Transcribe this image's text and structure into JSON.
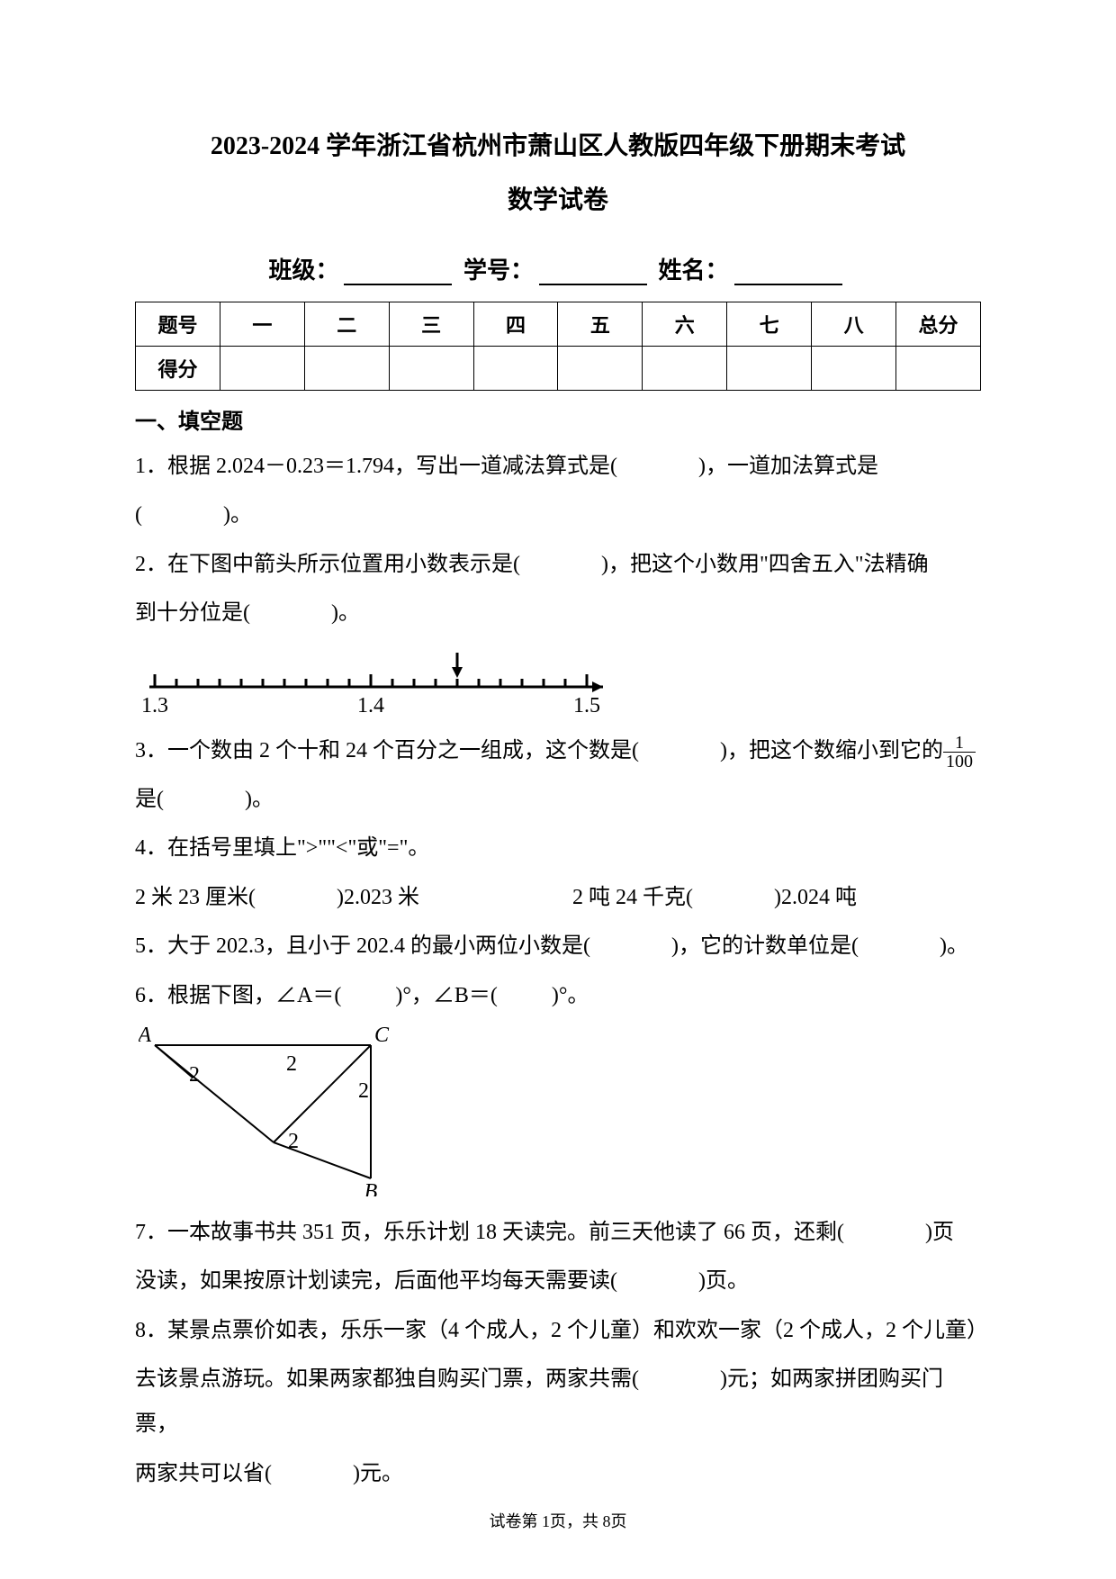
{
  "header": {
    "title": "2023-2024 学年浙江省杭州市萧山区人教版四年级下册期末考试",
    "subtitle": "数学试卷",
    "class_label": "班级：",
    "student_no_label": "学号：",
    "name_label": "姓名："
  },
  "score_table": {
    "headers": [
      "题号",
      "一",
      "二",
      "三",
      "四",
      "五",
      "六",
      "七",
      "八",
      "总分"
    ],
    "row_label": "得分"
  },
  "section1_title": "一、填空题",
  "questions": {
    "q1": {
      "text_a": "1．根据 2.024－0.23＝1.794，写出一道减法算式是(",
      "text_b": ")，一道加法算式是",
      "text_c": "(",
      "text_d": ")。"
    },
    "q2": {
      "text_a": "2．在下图中箭头所示位置用小数表示是(",
      "text_b": ")，把这个小数用\"四舍五入\"法精确",
      "text_c": "到十分位是(",
      "text_d": ")。"
    },
    "number_line": {
      "labels": [
        "1.3",
        "1.4",
        "1.5"
      ],
      "tick_spacing": 24,
      "major_ticks": [
        0,
        10,
        20
      ],
      "arrow_tick": 14,
      "line_color": "#000000",
      "line_width": 3
    },
    "q3": {
      "text_a": "3．一个数由 2 个十和 24 个百分之一组成，这个数是(",
      "text_b": ")，把这个数缩小到它的",
      "frac_num": "1",
      "frac_den": "100",
      "text_c": "是(",
      "text_d": ")。"
    },
    "q4": {
      "text": "4．在括号里填上\">\"\"<\"或\"=\"。",
      "line2_a": "2 米 23 厘米(",
      "line2_b": ")2.023 米",
      "line2_c": "2 吨 24 千克(",
      "line2_d": ")2.024 吨"
    },
    "q5": {
      "text_a": "5．大于 202.3，且小于 202.4 的最小两位小数是(",
      "text_b": ")，它的计数单位是(",
      "text_c": ")。"
    },
    "q6": {
      "text_a": "6．根据下图，∠A＝(",
      "text_b": ")°，∠B＝(",
      "text_c": ")°。"
    },
    "triangle": {
      "labels": {
        "A": "A",
        "B": "B",
        "C": "C"
      },
      "angle_mark": "2",
      "stroke": "#000000",
      "stroke_width": 2,
      "font_size": 24
    },
    "q7": {
      "text_a": "7．一本故事书共 351 页，乐乐计划 18 天读完。前三天他读了 66 页，还剩(",
      "text_b": ")页",
      "text_c": "没读，如果按原计划读完，后面他平均每天需要读(",
      "text_d": ")页。"
    },
    "q8": {
      "text_a": "8．某景点票价如表，乐乐一家（4 个成人，2 个儿童）和欢欢一家（2 个成人，2 个儿童）",
      "text_b": "去该景点游玩。如果两家都独自购买门票，两家共需(",
      "text_c": ")元；如两家拼团购买门票，",
      "text_d": "两家共可以省(",
      "text_e": ")元。"
    }
  },
  "footer": "试卷第 1页，共 8页"
}
